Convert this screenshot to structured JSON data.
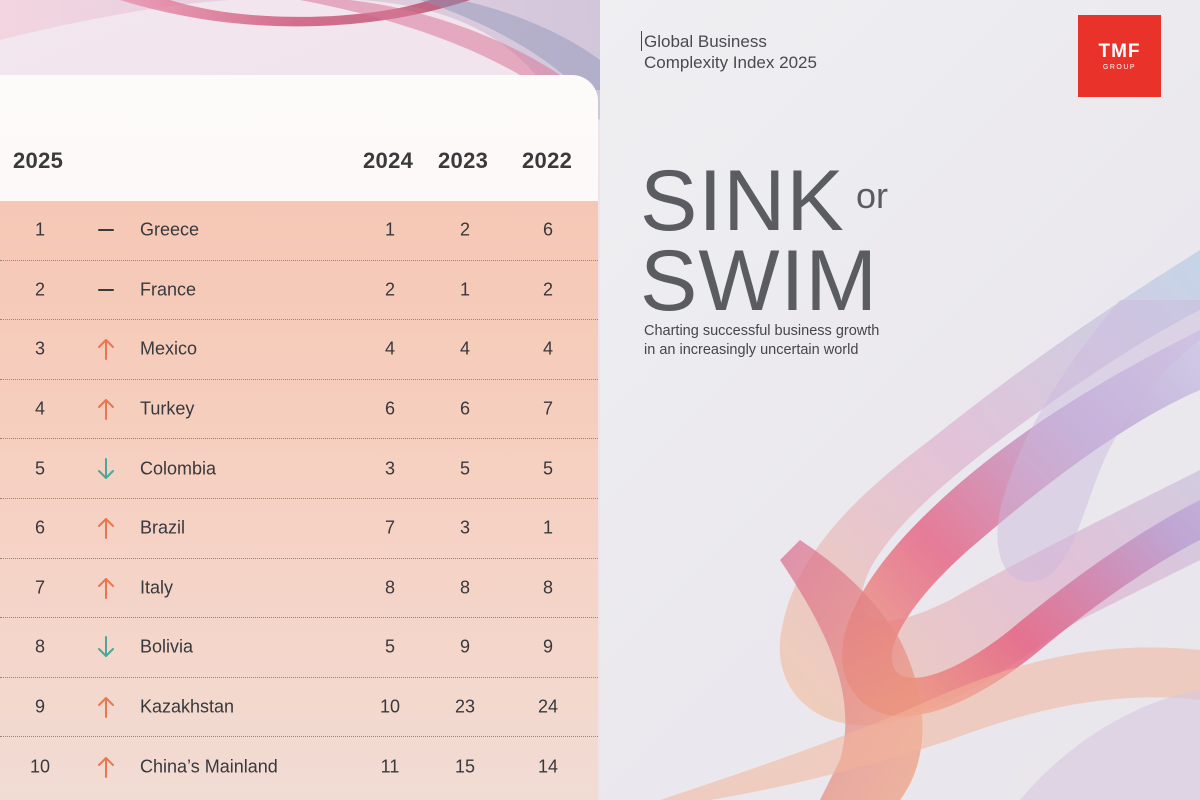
{
  "report": {
    "title_line1": "Global Business",
    "title_line2": "Complexity Index 2025",
    "headline_word1": "SINK",
    "headline_connector": "or",
    "headline_word2": "SWIM",
    "subtitle_line1": "Charting successful business growth",
    "subtitle_line2": "in an increasingly uncertain world"
  },
  "logo": {
    "main": "TMF",
    "sub": "GROUP",
    "color": "#e8322a"
  },
  "table": {
    "headers": {
      "current": "2025",
      "y2024": "2024",
      "y2023": "2023",
      "y2022": "2022"
    },
    "colors": {
      "up": "#e8774f",
      "down": "#4aa79a",
      "same": "#3a3a3c"
    },
    "rows": [
      {
        "rank": "1",
        "trend": "same",
        "trend_icon": "dash-icon",
        "country": "Greece",
        "y2024": "1",
        "y2023": "2",
        "y2022": "6"
      },
      {
        "rank": "2",
        "trend": "same",
        "trend_icon": "dash-icon",
        "country": "France",
        "y2024": "2",
        "y2023": "1",
        "y2022": "2"
      },
      {
        "rank": "3",
        "trend": "up",
        "trend_icon": "arrow-up-icon",
        "country": "Mexico",
        "y2024": "4",
        "y2023": "4",
        "y2022": "4"
      },
      {
        "rank": "4",
        "trend": "up",
        "trend_icon": "arrow-up-icon",
        "country": "Turkey",
        "y2024": "6",
        "y2023": "6",
        "y2022": "7"
      },
      {
        "rank": "5",
        "trend": "down",
        "trend_icon": "arrow-down-icon",
        "country": "Colombia",
        "y2024": "3",
        "y2023": "5",
        "y2022": "5"
      },
      {
        "rank": "6",
        "trend": "up",
        "trend_icon": "arrow-up-icon",
        "country": "Brazil",
        "y2024": "7",
        "y2023": "3",
        "y2022": "1"
      },
      {
        "rank": "7",
        "trend": "up",
        "trend_icon": "arrow-up-icon",
        "country": "Italy",
        "y2024": "8",
        "y2023": "8",
        "y2022": "8"
      },
      {
        "rank": "8",
        "trend": "down",
        "trend_icon": "arrow-down-icon",
        "country": "Bolivia",
        "y2024": "5",
        "y2023": "9",
        "y2022": "9"
      },
      {
        "rank": "9",
        "trend": "up",
        "trend_icon": "arrow-up-icon",
        "country": "Kazakhstan",
        "y2024": "10",
        "y2023": "23",
        "y2022": "24"
      },
      {
        "rank": "10",
        "trend": "up",
        "trend_icon": "arrow-up-icon",
        "country": "China’s Mainland",
        "y2024": "11",
        "y2023": "15",
        "y2022": "14"
      }
    ]
  }
}
